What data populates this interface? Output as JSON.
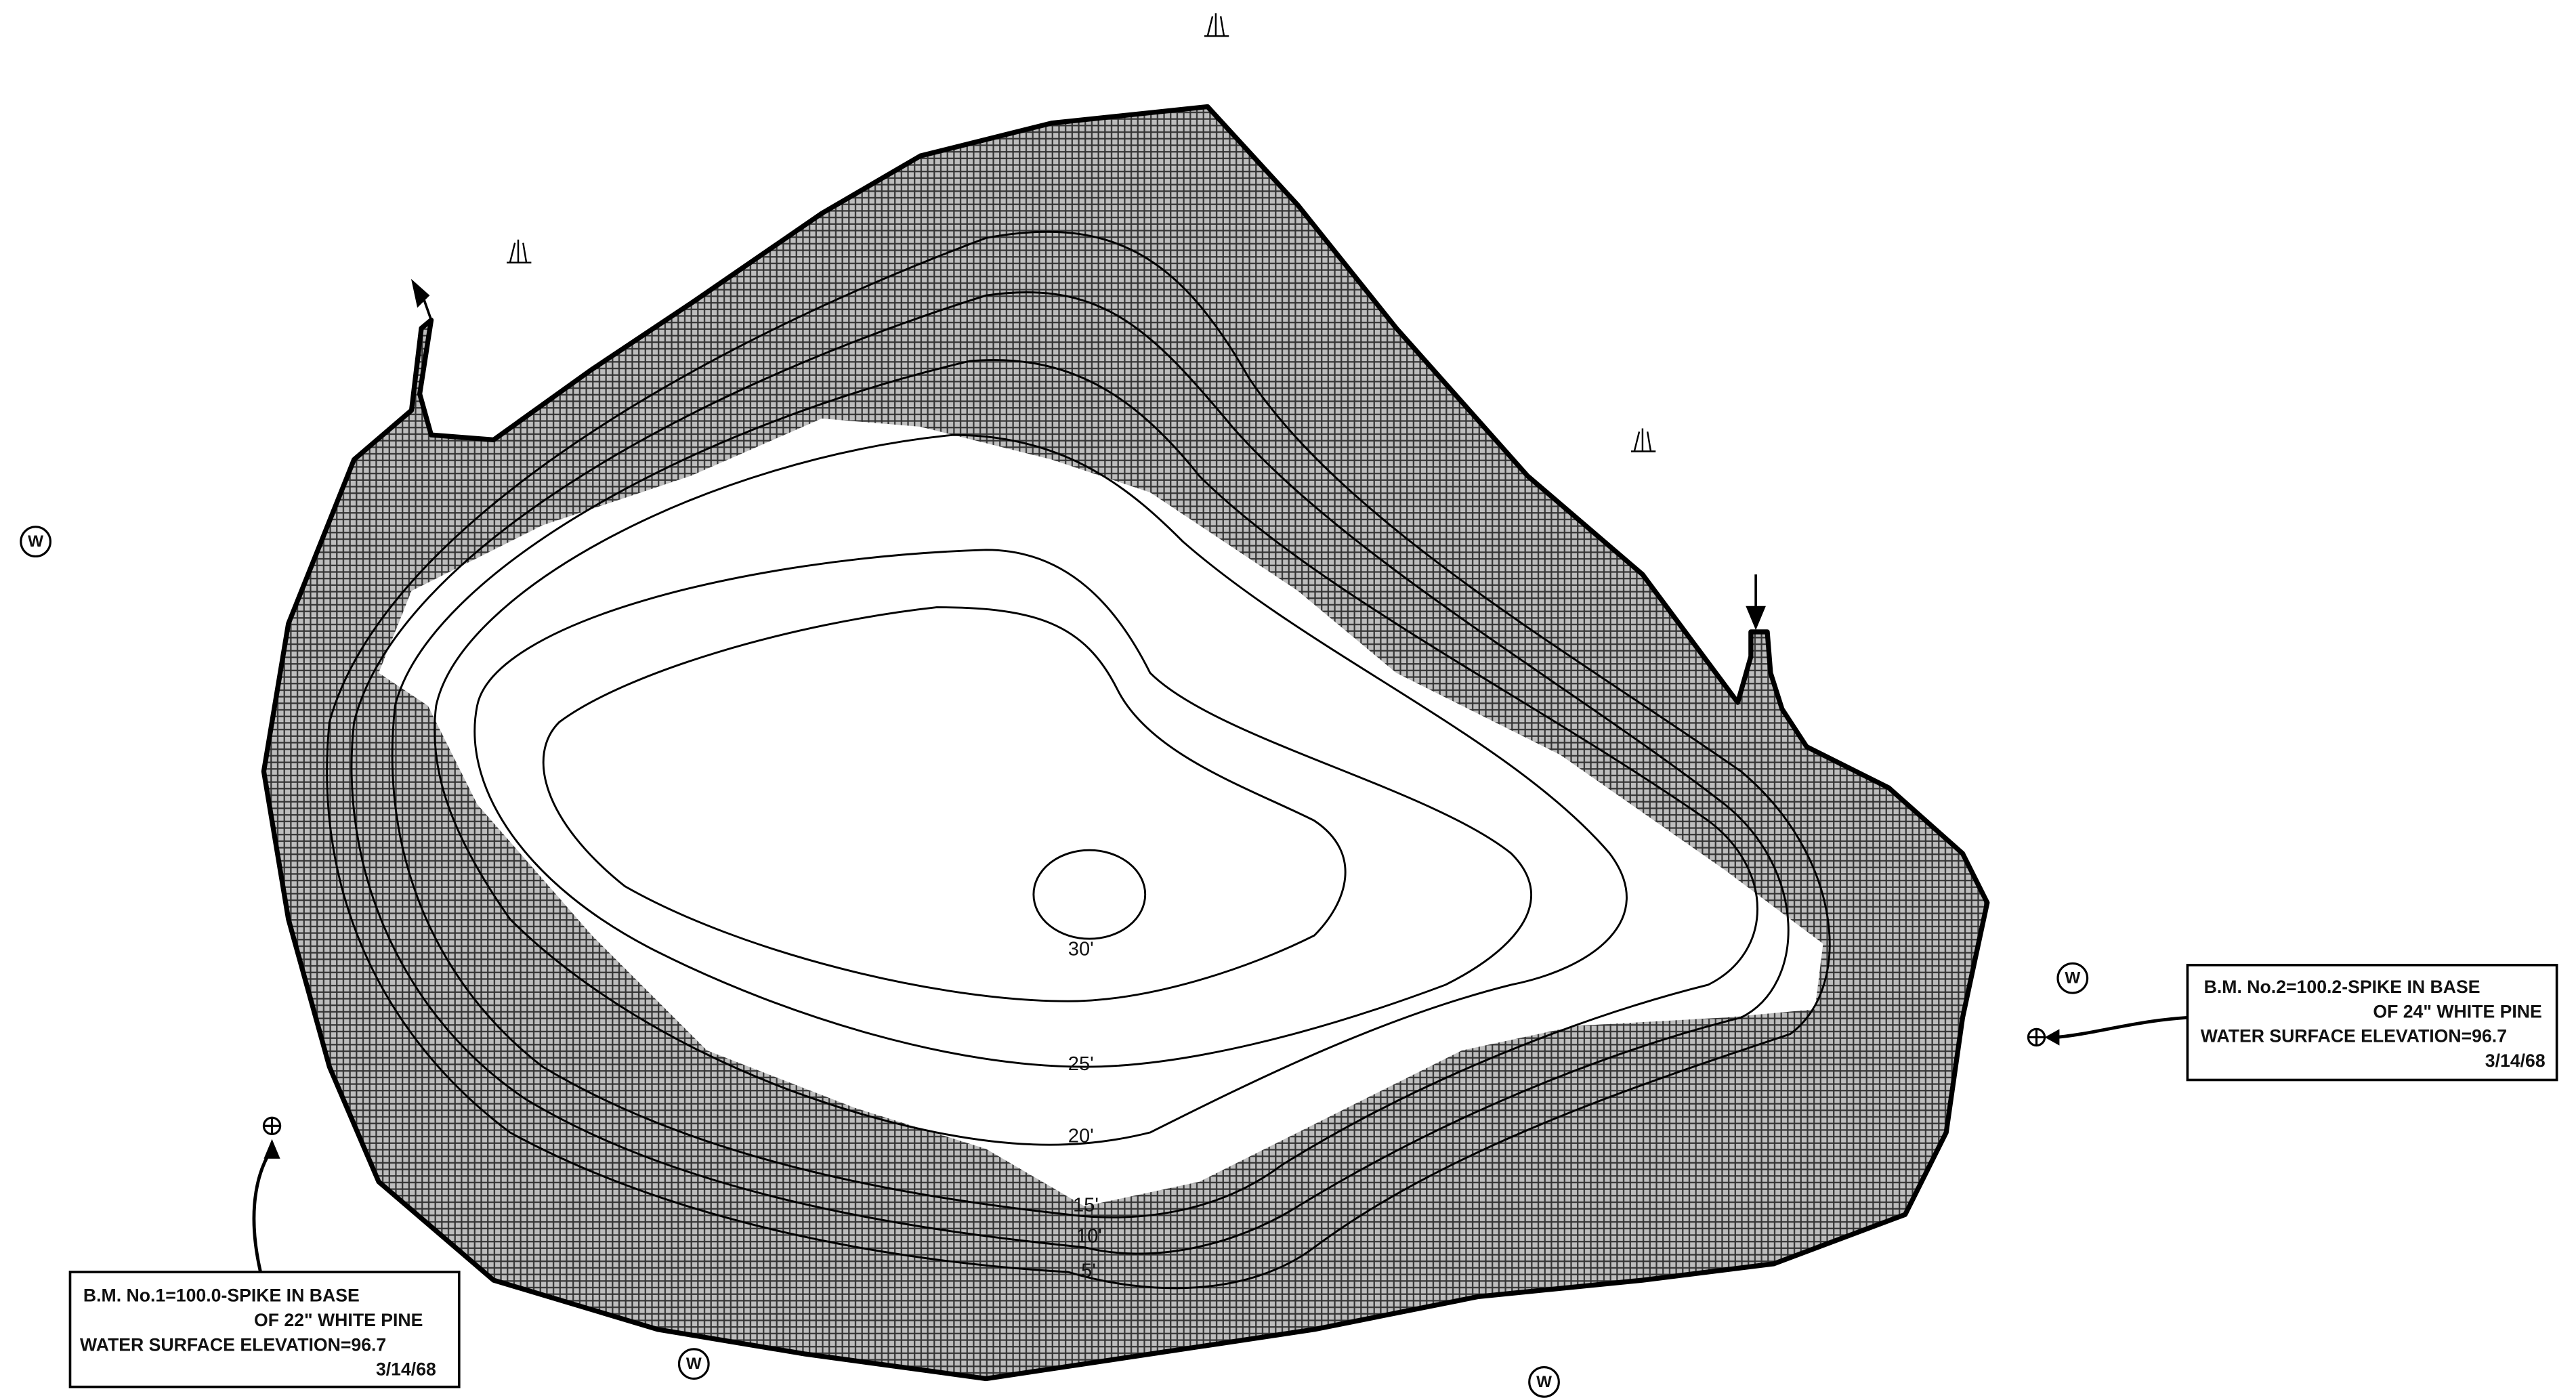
{
  "contours": [
    {
      "label": "30'"
    },
    {
      "label": "25'"
    },
    {
      "label": "20'"
    },
    {
      "label": "15'"
    },
    {
      "label": "10'"
    },
    {
      "label": "5'"
    }
  ],
  "benchmarks": [
    {
      "lines": [
        "B.M. No.1=100.0-SPIKE IN BASE",
        "OF 22\" WHITE PINE",
        "WATER SURFACE ELEVATION=96.7",
        "3/14/68"
      ]
    },
    {
      "lines": [
        "B.M. No.2=100.2-SPIKE IN BASE",
        "OF 24\" WHITE PINE",
        "WATER SURFACE ELEVATION=96.7",
        "3/14/68"
      ]
    }
  ],
  "well_symbols": [
    "W",
    "W",
    "W",
    "W"
  ]
}
